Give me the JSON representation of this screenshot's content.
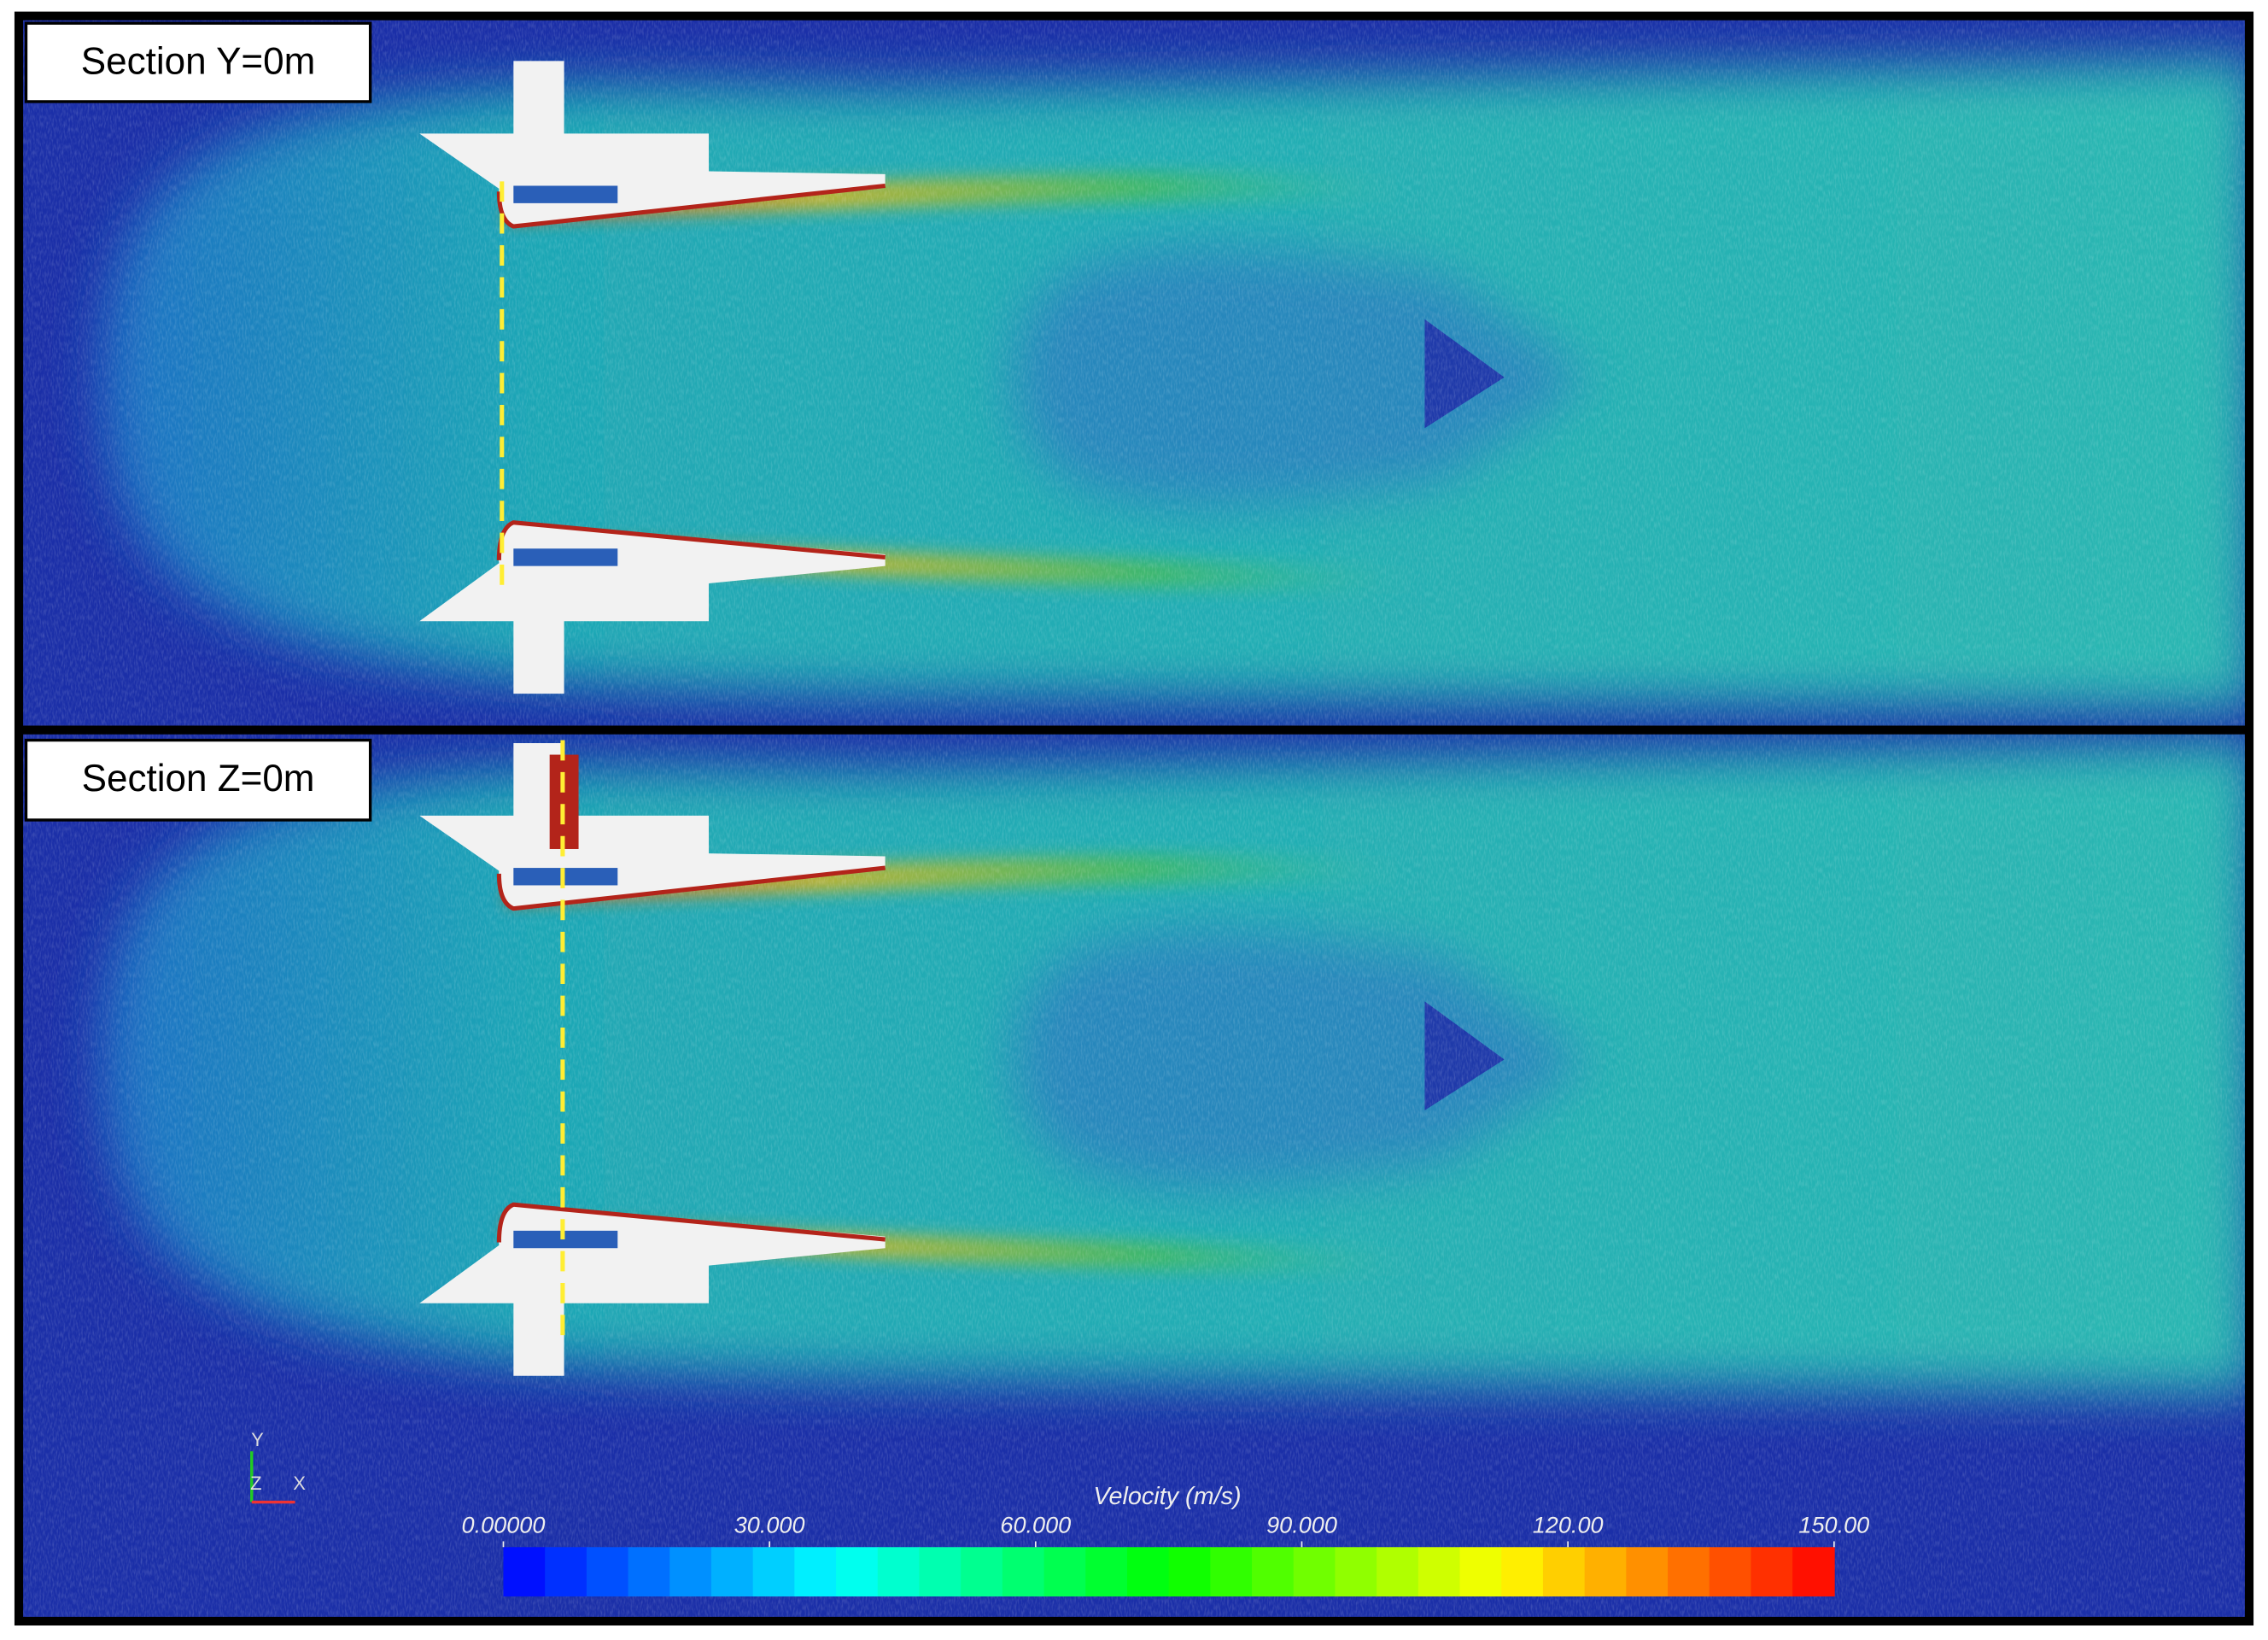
{
  "panels": [
    {
      "label": "Section Y=0m"
    },
    {
      "label": "Section Z=0m"
    }
  ],
  "colorbar": {
    "title": "Velocity (m/s)",
    "range": [
      0,
      150
    ],
    "ticks": [
      {
        "value": 0,
        "label": "0.00000"
      },
      {
        "value": 30,
        "label": "30.000"
      },
      {
        "value": 60,
        "label": "60.000"
      },
      {
        "value": 90,
        "label": "90.000"
      },
      {
        "value": 120,
        "label": "120.00"
      },
      {
        "value": 150,
        "label": "150.00"
      }
    ],
    "colors": [
      "#0000ff",
      "#0080ff",
      "#00ffff",
      "#00ff80",
      "#00ff00",
      "#80ff00",
      "#ffff00",
      "#ff8000",
      "#ff0000"
    ]
  },
  "triad": {
    "y": "Y",
    "z": "Z",
    "x": "X"
  }
}
